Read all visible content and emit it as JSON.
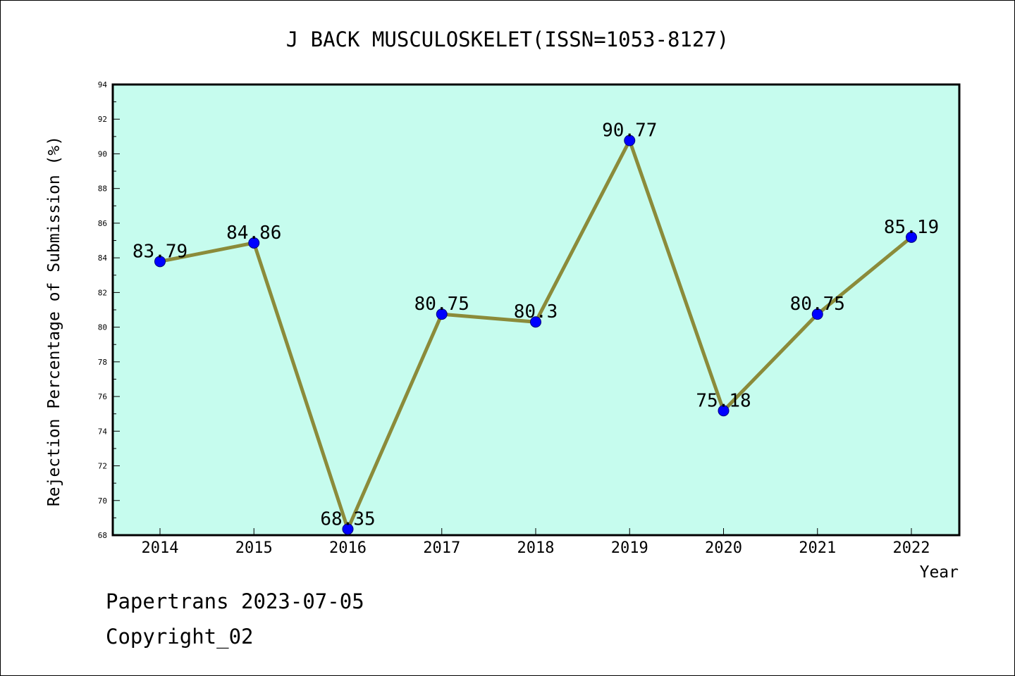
{
  "chart_data": {
    "type": "line",
    "title": "J BACK MUSCULOSKELET(ISSN=1053-8127)",
    "xlabel": "Year",
    "ylabel": "Rejection Percentage of Submission (%)",
    "categories": [
      "2014",
      "2015",
      "2016",
      "2017",
      "2018",
      "2019",
      "2020",
      "2021",
      "2022"
    ],
    "values": [
      83.79,
      84.86,
      68.35,
      80.75,
      80.3,
      90.77,
      75.18,
      80.75,
      85.19
    ],
    "data_labels": [
      "83.79",
      "84.86",
      "68.35",
      "80.75",
      "80.3",
      "90.77",
      "75.18",
      "80.75",
      "85.19"
    ],
    "ylim": [
      68,
      94
    ],
    "yticks": [
      "68",
      "70",
      "72",
      "74",
      "76",
      "78",
      "80",
      "82",
      "84",
      "86",
      "88",
      "90",
      "92",
      "94"
    ],
    "grid": false,
    "colors": {
      "plot_background": "#c6fcee",
      "line": "#8b8b3a",
      "marker": "#0000ff"
    }
  },
  "footer": {
    "line1": "Papertrans 2023-07-05",
    "line2": "Copyright_02"
  }
}
